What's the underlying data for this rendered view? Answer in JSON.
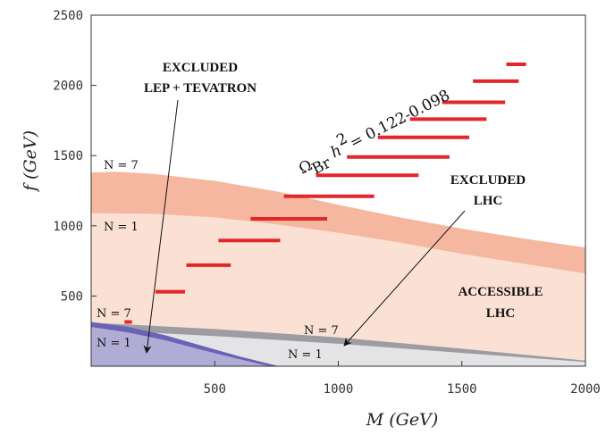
{
  "chart_data": {
    "type": "area",
    "xlabel": "M (GeV)",
    "ylabel": "f (GeV)",
    "xlim": [
      0,
      2000
    ],
    "ylim": [
      0,
      2500
    ],
    "x_ticks": [
      "500",
      "1000",
      "1500",
      "2000"
    ],
    "y_ticks": [
      "500",
      "1000",
      "1500",
      "2000",
      "2500"
    ],
    "grid": false,
    "regions": [
      {
        "name": "ACCESSIBLE LHC",
        "color": "#fbe0d4",
        "upper": [
          [
            0,
            1090
          ],
          [
            250,
            1085
          ],
          [
            500,
            1060
          ],
          [
            750,
            1010
          ],
          [
            1000,
            950
          ],
          [
            1250,
            880
          ],
          [
            1500,
            800
          ],
          [
            1750,
            730
          ],
          [
            2000,
            660
          ]
        ],
        "lower": [
          [
            0,
            0
          ],
          [
            2000,
            0
          ]
        ]
      },
      {
        "name": "N = 1 to N = 7 band",
        "color": "#f6b7a0",
        "upper": [
          [
            0,
            1380
          ],
          [
            100,
            1385
          ],
          [
            250,
            1370
          ],
          [
            500,
            1320
          ],
          [
            750,
            1245
          ],
          [
            1000,
            1150
          ],
          [
            1250,
            1060
          ],
          [
            1500,
            980
          ],
          [
            1750,
            910
          ],
          [
            2000,
            845
          ]
        ],
        "lower": [
          [
            0,
            1090
          ],
          [
            250,
            1085
          ],
          [
            500,
            1060
          ],
          [
            750,
            1010
          ],
          [
            1000,
            950
          ],
          [
            1250,
            880
          ],
          [
            1500,
            800
          ],
          [
            1750,
            730
          ],
          [
            2000,
            660
          ]
        ]
      },
      {
        "name": "EXCLUDED LHC",
        "color": "#e4e4e6",
        "upper": [
          [
            0,
            305
          ],
          [
            500,
            240
          ],
          [
            1000,
            180
          ],
          [
            1500,
            110
          ],
          [
            2000,
            35
          ]
        ],
        "lower": [
          [
            0,
            0
          ],
          [
            2000,
            0
          ]
        ]
      },
      {
        "name": "EXCLUDED LHC N = 7 band",
        "color": "#9c9ca2",
        "upper": [
          [
            0,
            310
          ],
          [
            500,
            265
          ],
          [
            1000,
            205
          ],
          [
            1500,
            125
          ],
          [
            2000,
            40
          ]
        ],
        "lower": [
          [
            0,
            260
          ],
          [
            500,
            215
          ],
          [
            1000,
            160
          ],
          [
            1500,
            95
          ],
          [
            2000,
            30
          ]
        ]
      },
      {
        "name": "EXCLUDED LEP + TEVATRON",
        "color": "#b1acd6",
        "upper": [
          [
            0,
            290
          ],
          [
            150,
            255
          ],
          [
            300,
            200
          ],
          [
            450,
            130
          ],
          [
            600,
            60
          ],
          [
            760,
            0
          ]
        ],
        "lower": [
          [
            0,
            0
          ],
          [
            760,
            0
          ]
        ]
      },
      {
        "name": "EXCLUDED LEP + TEVATRON band",
        "color": "#6a63b5",
        "upper": [
          [
            0,
            315
          ],
          [
            150,
            280
          ],
          [
            300,
            220
          ],
          [
            450,
            145
          ],
          [
            600,
            70
          ],
          [
            760,
            0
          ]
        ],
        "lower": [
          [
            0,
            280
          ],
          [
            150,
            240
          ],
          [
            300,
            185
          ],
          [
            450,
            115
          ],
          [
            600,
            50
          ],
          [
            720,
            0
          ]
        ]
      }
    ],
    "relic_density_segments": {
      "name": "Ω_Br h² = 0.122-0.098",
      "color": "#e3262a",
      "segments": [
        {
          "m_min": 135,
          "m_max": 165,
          "f": 315
        },
        {
          "m_min": 260,
          "m_max": 380,
          "f": 530
        },
        {
          "m_min": 385,
          "m_max": 565,
          "f": 720
        },
        {
          "m_min": 515,
          "m_max": 765,
          "f": 895
        },
        {
          "m_min": 645,
          "m_max": 955,
          "f": 1050
        },
        {
          "m_min": 780,
          "m_max": 1145,
          "f": 1210
        },
        {
          "m_min": 910,
          "m_max": 1325,
          "f": 1360
        },
        {
          "m_min": 1035,
          "m_max": 1450,
          "f": 1490
        },
        {
          "m_min": 1160,
          "m_max": 1530,
          "f": 1630
        },
        {
          "m_min": 1290,
          "m_max": 1600,
          "f": 1760
        },
        {
          "m_min": 1420,
          "m_max": 1675,
          "f": 1880
        },
        {
          "m_min": 1545,
          "m_max": 1730,
          "f": 2030
        },
        {
          "m_min": 1680,
          "m_max": 1760,
          "f": 2150
        }
      ]
    },
    "annotations": {
      "excluded_lep_line1": "EXCLUDED",
      "excluded_lep_line2": "LEP + TEVATRON",
      "excluded_lhc_line1": "EXCLUDED",
      "excluded_lhc_line2": "LHC",
      "accessible_line1": "ACCESSIBLE",
      "accessible_line2": "LHC",
      "n7_upper": "N = 7",
      "n1_upper": "N = 1",
      "n7_lower_left": "N = 7",
      "n1_lower_left": "N = 1",
      "n7_lower_right": "N = 7",
      "n1_lower_right": "N = 1",
      "omega_label": "Ω",
      "omega_sub": "Br",
      "omega_h": "h",
      "omega_sup": "2",
      "omega_value": "= 0.122-0.098"
    }
  }
}
